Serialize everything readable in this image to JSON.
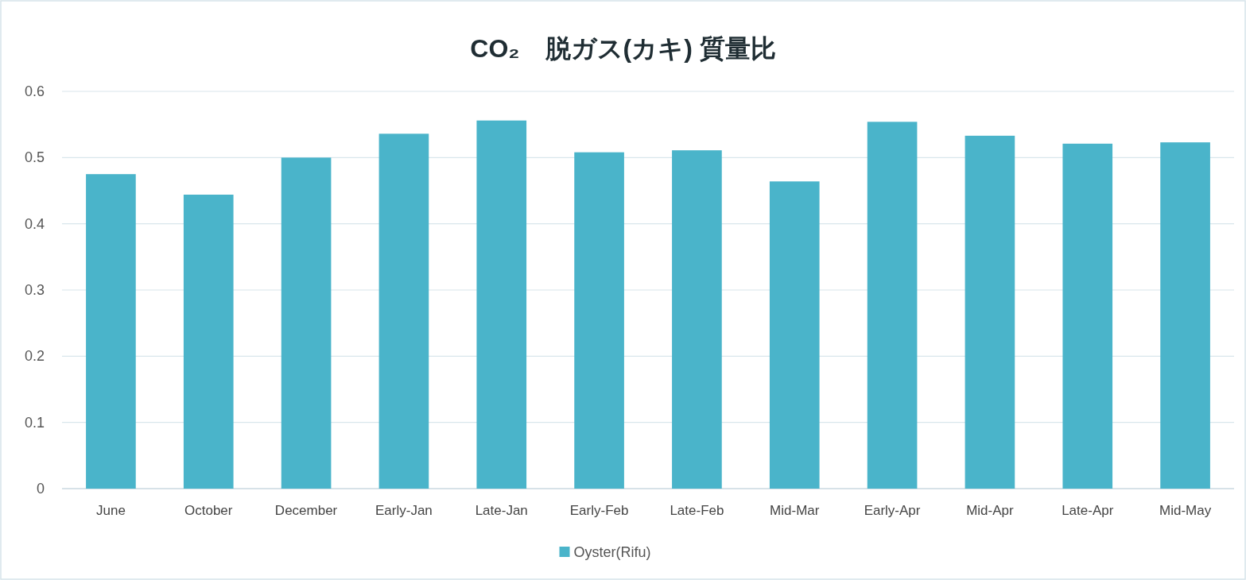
{
  "chart_data": {
    "type": "bar",
    "title": "CO₂　脱ガス(カキ) 質量比",
    "categories": [
      "June",
      "October",
      "December",
      "Early-Jan",
      "Late-Jan",
      "Early-Feb",
      "Late-Feb",
      "Mid-Mar",
      "Early-Apr",
      "Mid-Apr",
      "Late-Apr",
      "Mid-May"
    ],
    "series": [
      {
        "name": "Oyster(Rifu)",
        "color": "#4ab4ca",
        "values": [
          0.475,
          0.444,
          0.5,
          0.536,
          0.556,
          0.508,
          0.511,
          0.464,
          0.554,
          0.533,
          0.521,
          0.523
        ]
      }
    ],
    "ylim": [
      0,
      0.6
    ],
    "yticks": [
      0,
      0.1,
      0.2,
      0.3,
      0.4,
      0.5,
      0.6
    ],
    "grid": "y",
    "legend": "bottom"
  }
}
